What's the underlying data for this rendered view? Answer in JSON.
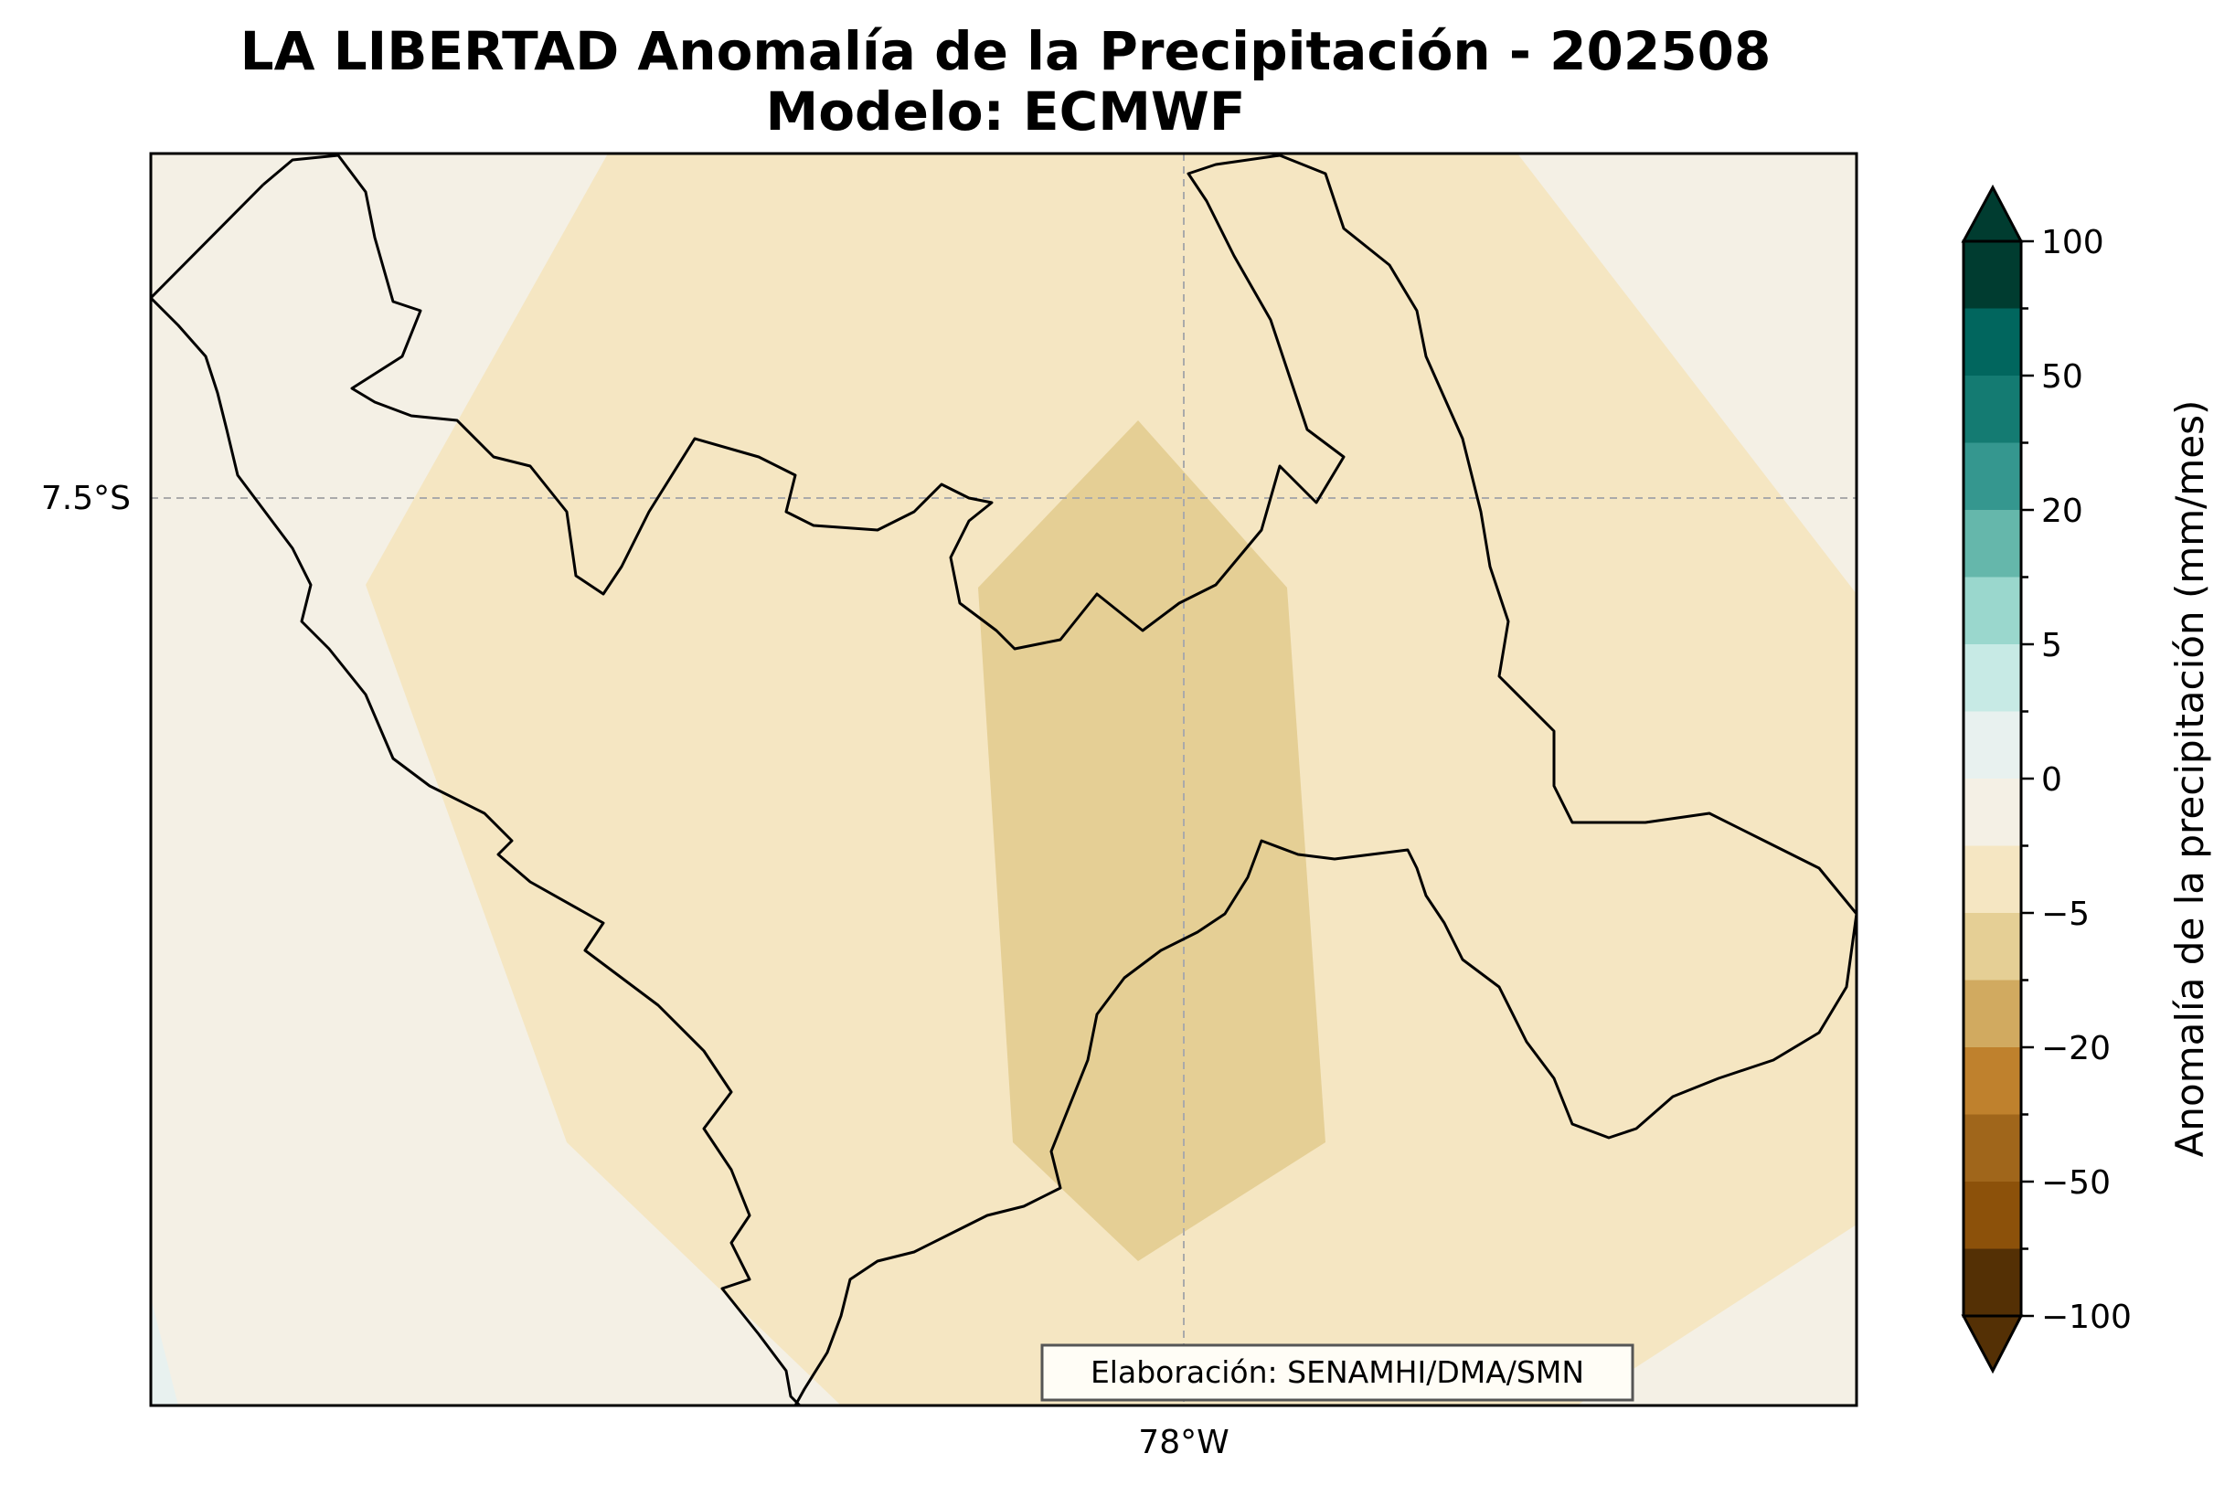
{
  "title_line1": "LA LIBERTAD Anomalía de la Precipitación - 202508",
  "title_line2": "Modelo: ECMWF",
  "map": {
    "lat_label": "7.5°S",
    "lon_label": "78°W",
    "credit": "Elaboración: SENAMHI/DMA/SMN",
    "gridlines": true
  },
  "colorbar": {
    "label": "Anomalía de la precipitación (mm/mes)",
    "tick_labels": [
      "100",
      "50",
      "20",
      "5",
      "0",
      "−5",
      "−20",
      "−50",
      "−100"
    ],
    "extend": "both",
    "colors_top_to_bottom": [
      "#003c30",
      "#01665e",
      "#147b72",
      "#35978f",
      "#65b7ab",
      "#9ad7cd",
      "#c7eae5",
      "#e8f1ef",
      "#f4f0e5",
      "#f5e6c2",
      "#e5cf95",
      "#d1aa60",
      "#bf812d",
      "#a0661b",
      "#8c510a",
      "#543005"
    ],
    "arrow_top_color": "#003c30",
    "arrow_bottom_color": "#543005"
  },
  "fill_colors": {
    "background": "#f4f0e5",
    "light_negative": "#f5e6c2",
    "medium_negative": "#e5cf95",
    "slight_positive": "#e8f1ef"
  }
}
